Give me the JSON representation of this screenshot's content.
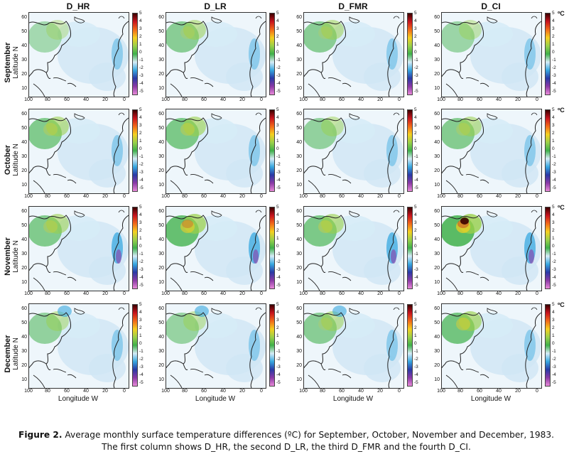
{
  "columns": [
    "D_HR",
    "D_LR",
    "D_FMR",
    "D_CI"
  ],
  "rows": [
    "September",
    "October",
    "November",
    "December"
  ],
  "y_axis_label": "Latitude N",
  "x_axis_label": "Longitude  W",
  "y_ticks": [
    "60",
    "50",
    "40",
    "30",
    "20",
    "10"
  ],
  "x_ticks": [
    "100",
    "80",
    "60",
    "40",
    "20",
    "0"
  ],
  "colorbar_ticks": [
    "5",
    "4",
    "3",
    "2",
    "1",
    "0",
    "-1",
    "-2",
    "-3",
    "-4",
    "-5"
  ],
  "colorbar_unit": "ºC",
  "colorbar_colors": [
    "#3a0000",
    "#c8141e",
    "#f26a1a",
    "#f5d020",
    "#9ad04a",
    "#3fb04a",
    "#d6ecf7",
    "#38a8e0",
    "#2a3aa6",
    "#8a3aa6",
    "#e88ad8"
  ],
  "caption": {
    "figure_label": "Figure 2.",
    "text": " Average monthly surface temperature differences (ºC) for September, October, November and December, 1983. The first column shows D_HR, the second D_LR, the third D_FMR and the fourth D_CI."
  }
}
